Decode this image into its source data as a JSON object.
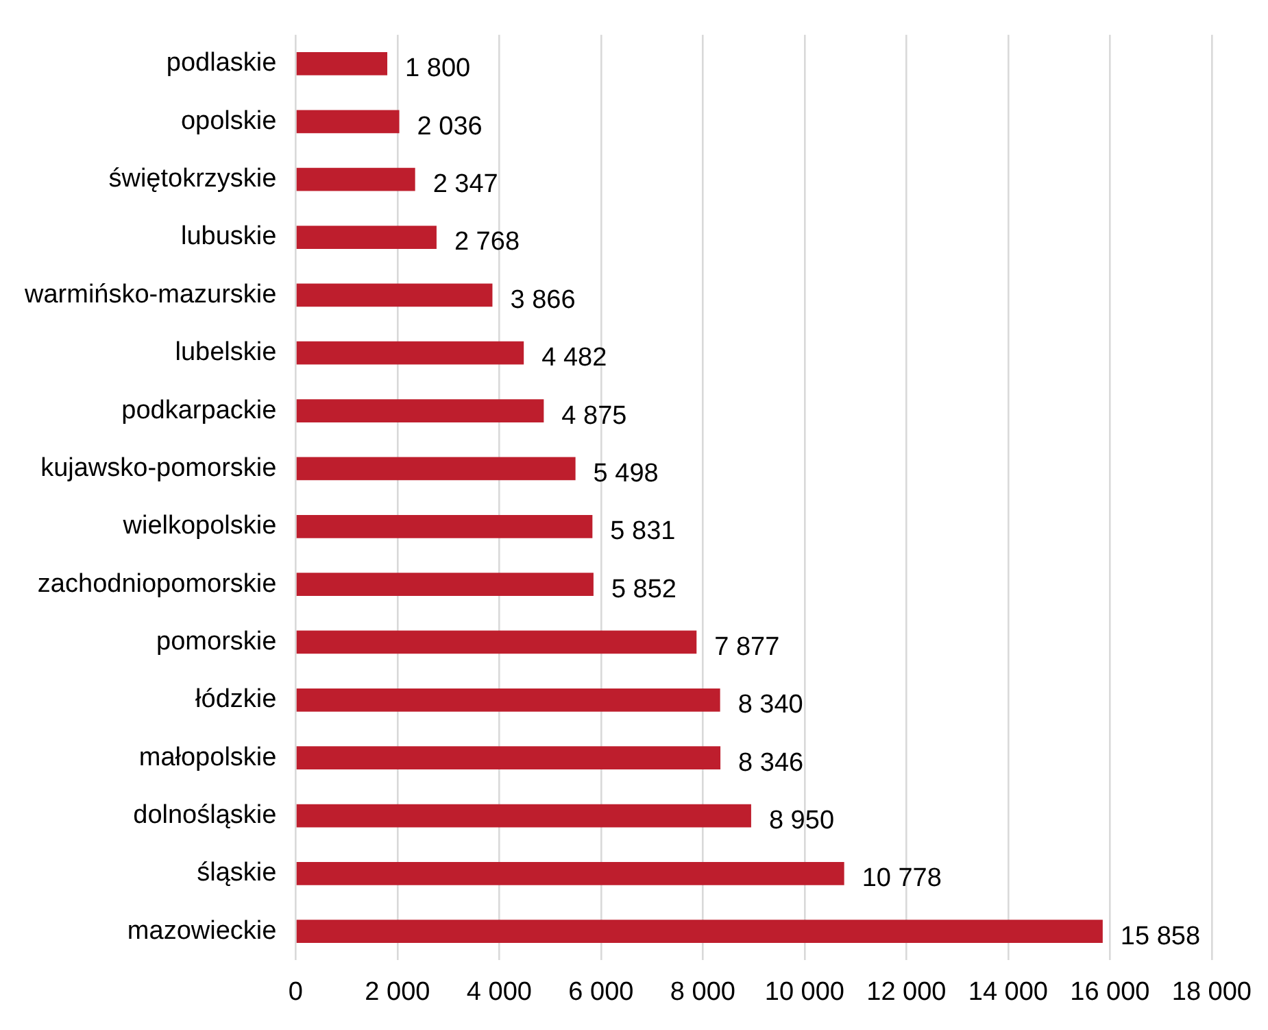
{
  "chart_data": {
    "type": "bar",
    "orientation": "horizontal",
    "categories": [
      "podlaskie",
      "opolskie",
      "świętokrzyskie",
      "lubuskie",
      "warmińsko-mazurskie",
      "lubelskie",
      "podkarpackie",
      "kujawsko-pomorskie",
      "wielkopolskie",
      "zachodniopomorskie",
      "pomorskie",
      "łódzkie",
      "małopolskie",
      "dolnośląskie",
      "śląskie",
      "mazowieckie"
    ],
    "values": [
      1800,
      2036,
      2347,
      2768,
      3866,
      4482,
      4875,
      5498,
      5831,
      5852,
      7877,
      8340,
      8346,
      8950,
      10778,
      15858
    ],
    "value_labels": [
      "1 800",
      "2 036",
      "2 347",
      "2 768",
      "3 866",
      "4 482",
      "4 875",
      "5 498",
      "5 831",
      "5 852",
      "7 877",
      "8 340",
      "8 346",
      "8 950",
      "10 778",
      "15 858"
    ],
    "color": "#be1e2d",
    "xlim": [
      0,
      18000
    ],
    "xticks": [
      {
        "value": 0,
        "label": "0"
      },
      {
        "value": 2000,
        "label": "2 000"
      },
      {
        "value": 4000,
        "label": "4 000"
      },
      {
        "value": 6000,
        "label": "6 000"
      },
      {
        "value": 8000,
        "label": "8 000"
      },
      {
        "value": 10000,
        "label": "10 000"
      },
      {
        "value": 12000,
        "label": "12 000"
      },
      {
        "value": 14000,
        "label": "14 000"
      },
      {
        "value": 16000,
        "label": "16 000"
      },
      {
        "value": 18000,
        "label": "18 000"
      }
    ],
    "grid": "x"
  }
}
